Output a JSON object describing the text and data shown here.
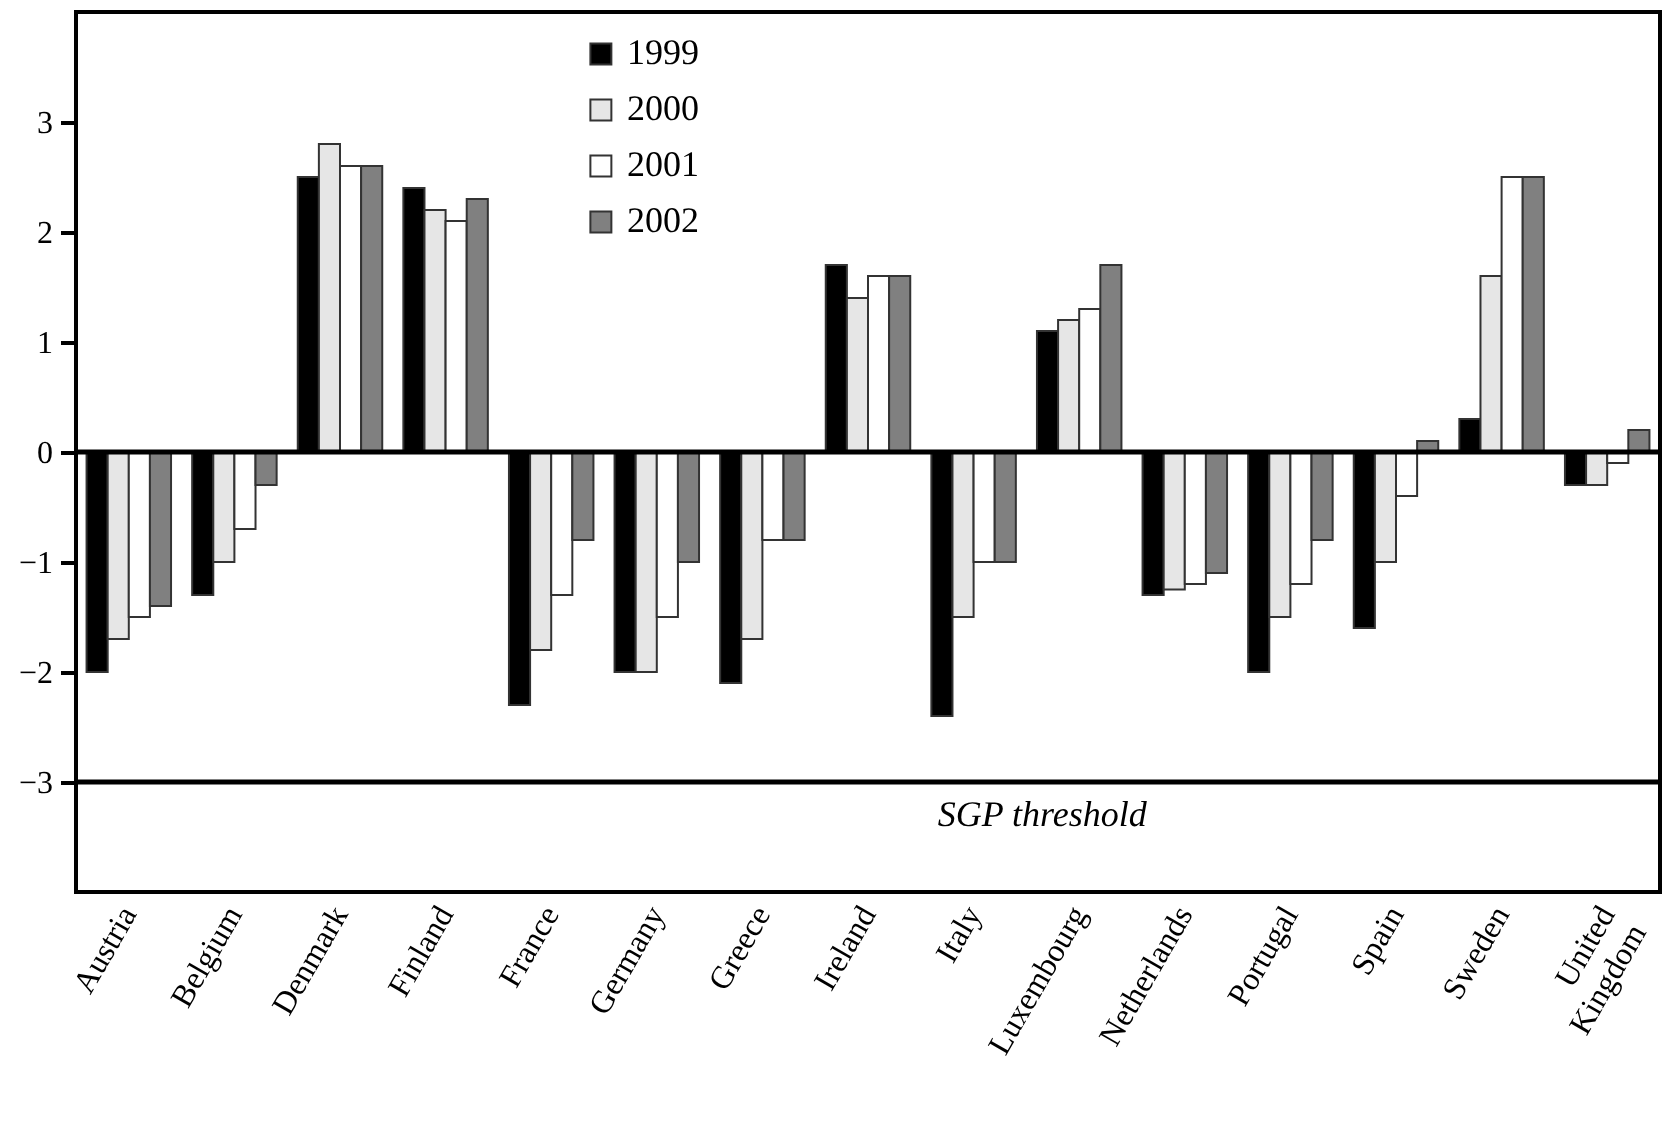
{
  "chart_data": {
    "type": "bar",
    "categories": [
      "Austria",
      "Belgium",
      "Denmark",
      "Finland",
      "France",
      "Germany",
      "Greece",
      "Ireland",
      "Italy",
      "Luxembourg",
      "Netherlands",
      "Portugal",
      "Spain",
      "Sweden",
      "United Kingdom"
    ],
    "series": [
      {
        "name": "1999",
        "color": "#000000",
        "values": [
          -2.0,
          -1.3,
          2.5,
          2.4,
          -2.3,
          -2.0,
          -2.1,
          1.7,
          -2.4,
          1.1,
          -1.3,
          -2.0,
          -1.6,
          0.3,
          -0.3
        ]
      },
      {
        "name": "2000",
        "color": "#e6e6e6",
        "values": [
          -1.7,
          -1.0,
          2.8,
          2.2,
          -1.8,
          -2.0,
          -1.7,
          1.4,
          -1.5,
          1.2,
          -1.25,
          -1.5,
          -1.0,
          1.6,
          -0.3
        ]
      },
      {
        "name": "2001",
        "color": "#ffffff",
        "values": [
          -1.5,
          -0.7,
          2.6,
          2.1,
          -1.3,
          -1.5,
          -0.8,
          1.6,
          -1.0,
          1.3,
          -1.2,
          -1.2,
          -0.4,
          2.5,
          -0.1
        ]
      },
      {
        "name": "2002",
        "color": "#808080",
        "values": [
          -1.4,
          -0.3,
          2.6,
          2.3,
          -0.8,
          -1.0,
          -0.8,
          1.6,
          -1.0,
          1.7,
          -1.1,
          -0.8,
          0.1,
          2.5,
          0.2
        ]
      }
    ],
    "ylim": [
      -4,
      4
    ],
    "yticks": [
      -3,
      -2,
      -1,
      0,
      1,
      2,
      3
    ],
    "ref_lines": [
      {
        "axis": "y",
        "value": 0,
        "label": null
      },
      {
        "axis": "y",
        "value": -3,
        "label": "SGP threshold"
      }
    ],
    "legend": "top",
    "grid": false
  }
}
